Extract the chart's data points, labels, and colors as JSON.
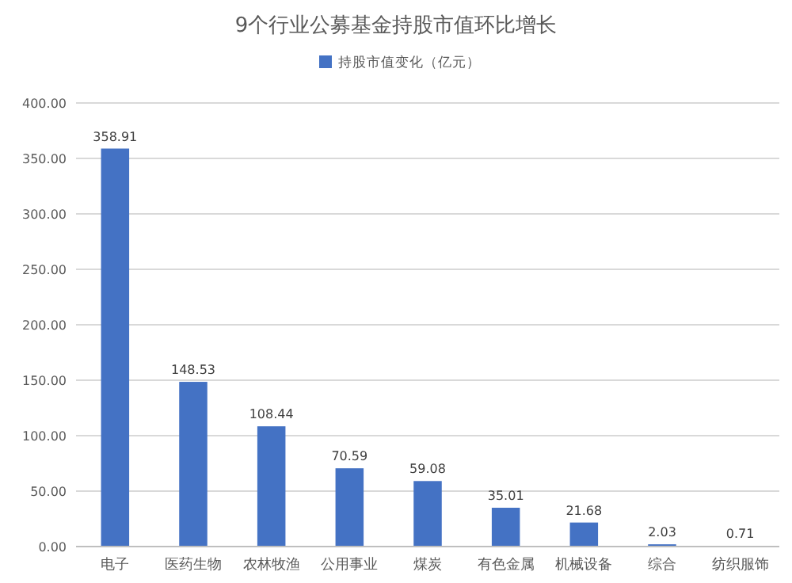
{
  "chart_data": {
    "type": "bar",
    "title": "9个行业公募基金持股市值环比增长",
    "categories": [
      "电子",
      "医药生物",
      "农林牧渔",
      "公用事业",
      "煤炭",
      "有色金属",
      "机械设备",
      "综合",
      "纺织服饰"
    ],
    "series": [
      {
        "name": "持股市值变化（亿元）",
        "color": "#4472c4",
        "values": [
          358.91,
          148.53,
          108.44,
          70.59,
          59.08,
          35.01,
          21.68,
          2.03,
          0.71
        ]
      }
    ],
    "ylim": [
      0,
      400
    ],
    "yticks": [
      {
        "value": 0,
        "label": "0.00"
      },
      {
        "value": 50,
        "label": "50.00"
      },
      {
        "value": 100,
        "label": "100.00"
      },
      {
        "value": 150,
        "label": "150.00"
      },
      {
        "value": 200,
        "label": "200.00"
      },
      {
        "value": 250,
        "label": "250.00"
      },
      {
        "value": 300,
        "label": "300.00"
      },
      {
        "value": 350,
        "label": "350.00"
      },
      {
        "value": 400,
        "label": "400.00"
      }
    ],
    "grid": "y",
    "legend": "top",
    "data_labels": true
  }
}
